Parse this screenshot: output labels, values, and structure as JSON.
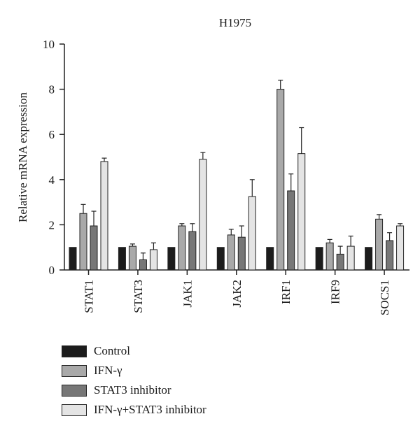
{
  "chart_data": {
    "type": "bar",
    "title": "H1975",
    "ylabel": "Relative mRNA expression",
    "xlabel": "",
    "ylim": [
      0,
      10
    ],
    "yticks": [
      0,
      2,
      4,
      6,
      8,
      10
    ],
    "categories": [
      "STAT1",
      "STAT3",
      "JAK1",
      "JAK2",
      "IRF1",
      "IRF9",
      "SOCS1"
    ],
    "series": [
      {
        "name": "Control",
        "color": "#1c1c1c",
        "values": [
          1.0,
          1.0,
          1.0,
          1.0,
          1.0,
          1.0,
          1.0
        ],
        "errors": [
          0,
          0,
          0,
          0,
          0,
          0,
          0
        ]
      },
      {
        "name": "IFN-γ",
        "color": "#a9a9a9",
        "values": [
          2.5,
          1.05,
          1.95,
          1.55,
          8.0,
          1.2,
          2.25
        ],
        "errors": [
          0.4,
          0.1,
          0.1,
          0.25,
          0.4,
          0.15,
          0.2
        ]
      },
      {
        "name": "STAT3 inhibitor",
        "color": "#777777",
        "values": [
          1.95,
          0.45,
          1.7,
          1.45,
          3.5,
          0.7,
          1.3
        ],
        "errors": [
          0.65,
          0.3,
          0.35,
          0.5,
          0.75,
          0.35,
          0.35
        ]
      },
      {
        "name": "IFN-γ+STAT3 inhibitor",
        "color": "#e4e4e4",
        "values": [
          4.8,
          0.9,
          4.9,
          3.25,
          5.15,
          1.05,
          1.95
        ],
        "errors": [
          0.15,
          0.3,
          0.3,
          0.75,
          1.15,
          0.45,
          0.1
        ]
      }
    ],
    "grid": false,
    "legend_position": "bottom-left"
  }
}
